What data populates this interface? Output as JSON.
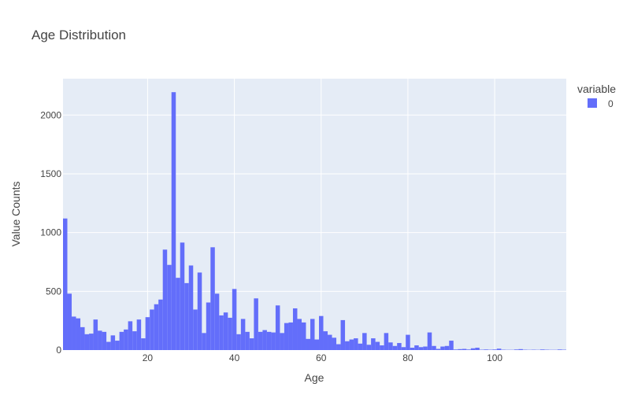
{
  "chart_data": {
    "type": "bar",
    "title": "Age Distribution",
    "xlabel": "Age",
    "ylabel": "Value Counts",
    "xlim": [
      1,
      116
    ],
    "ylim": [
      0,
      2310
    ],
    "x_ticks": [
      20,
      40,
      60,
      80,
      100
    ],
    "y_ticks": [
      0,
      500,
      1000,
      1500,
      2000
    ],
    "grid": true,
    "legend": {
      "title": "variable",
      "position": "top-right"
    },
    "colors": {
      "bar": "#636efa",
      "plot_bg": "#e5ecf6",
      "grid": "#ffffff"
    },
    "series": [
      {
        "name": "0",
        "x": [
          1,
          2,
          3,
          4,
          5,
          6,
          7,
          8,
          9,
          10,
          11,
          12,
          13,
          14,
          15,
          16,
          17,
          18,
          19,
          20,
          21,
          22,
          23,
          24,
          25,
          26,
          27,
          28,
          29,
          30,
          31,
          32,
          33,
          34,
          35,
          36,
          37,
          38,
          39,
          40,
          41,
          42,
          43,
          44,
          45,
          46,
          47,
          48,
          49,
          50,
          51,
          52,
          53,
          54,
          55,
          56,
          57,
          58,
          59,
          60,
          61,
          62,
          63,
          64,
          65,
          66,
          67,
          68,
          69,
          70,
          71,
          72,
          73,
          74,
          75,
          76,
          77,
          78,
          79,
          80,
          81,
          82,
          83,
          84,
          85,
          86,
          87,
          88,
          89,
          90,
          91,
          92,
          93,
          94,
          95,
          96,
          97,
          98,
          99,
          100,
          101,
          102,
          103,
          104,
          105,
          106,
          107,
          108,
          109,
          110,
          111,
          112,
          113,
          114,
          115,
          116
        ],
        "values": [
          1120,
          480,
          285,
          270,
          195,
          135,
          140,
          260,
          165,
          155,
          70,
          125,
          80,
          155,
          175,
          245,
          160,
          260,
          100,
          280,
          345,
          390,
          430,
          855,
          725,
          2195,
          615,
          915,
          570,
          720,
          345,
          660,
          145,
          405,
          875,
          480,
          295,
          320,
          275,
          520,
          135,
          265,
          155,
          100,
          440,
          155,
          170,
          155,
          150,
          380,
          145,
          230,
          235,
          355,
          265,
          235,
          95,
          265,
          90,
          290,
          160,
          130,
          105,
          50,
          255,
          75,
          90,
          100,
          55,
          145,
          45,
          100,
          70,
          40,
          145,
          65,
          35,
          60,
          25,
          130,
          20,
          40,
          25,
          30,
          150,
          35,
          10,
          30,
          35,
          80,
          5,
          8,
          10,
          5,
          15,
          20,
          3,
          5,
          3,
          5,
          12,
          3,
          2,
          2,
          5,
          8,
          3,
          2,
          3,
          2,
          5,
          3,
          2,
          2,
          5,
          3
        ]
      }
    ]
  }
}
